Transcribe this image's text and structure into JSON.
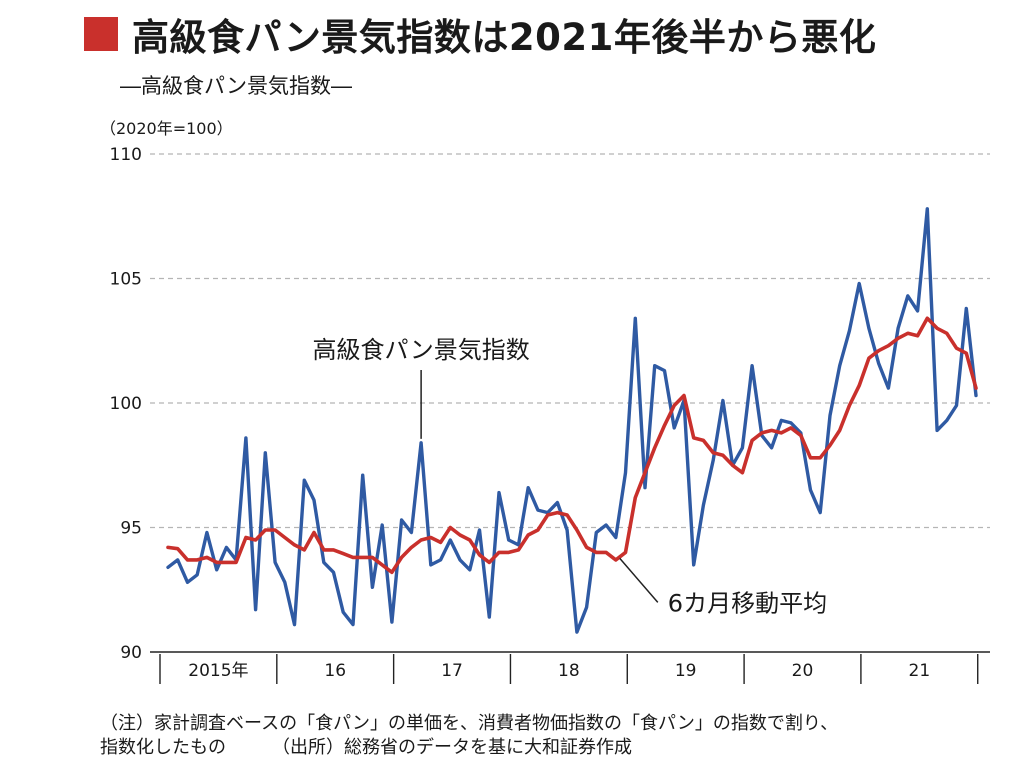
{
  "header": {
    "title": "高級食パン景気指数は2021年後半から悪化",
    "accent_color": "#c9302c"
  },
  "footer": {
    "note": "（注）家計調査ベースの「食パン」の単価を、消費者物価指数の「食パン」の指数で割り、",
    "note2": "指数化したもの",
    "source": "（出所）総務省のデータを基に大和証券作成"
  },
  "chart_data": {
    "type": "line",
    "subtitle": "―高級食パン景気指数―",
    "unit_label": "（2020年=100）",
    "ylim": [
      90,
      110
    ],
    "yticks": [
      90,
      95,
      100,
      105,
      110
    ],
    "x_range": [
      2015,
      2021.9167
    ],
    "categories": [
      "2015年",
      "16",
      "17",
      "18",
      "19",
      "20",
      "21"
    ],
    "grid": true,
    "series": [
      {
        "name": "高級食パン景気指数",
        "color": "#2f5aa3",
        "x": [
          2015.0,
          2015.0833,
          2015.1667,
          2015.25,
          2015.3333,
          2015.4167,
          2015.5,
          2015.5833,
          2015.6667,
          2015.75,
          2015.8333,
          2015.9167,
          2016.0,
          2016.0833,
          2016.1667,
          2016.25,
          2016.3333,
          2016.4167,
          2016.5,
          2016.5833,
          2016.6667,
          2016.75,
          2016.8333,
          2016.9167,
          2017.0,
          2017.0833,
          2017.1667,
          2017.25,
          2017.3333,
          2017.4167,
          2017.5,
          2017.5833,
          2017.6667,
          2017.75,
          2017.8333,
          2017.9167,
          2018.0,
          2018.0833,
          2018.1667,
          2018.25,
          2018.3333,
          2018.4167,
          2018.5,
          2018.5833,
          2018.6667,
          2018.75,
          2018.8333,
          2018.9167,
          2019.0,
          2019.0833,
          2019.1667,
          2019.25,
          2019.3333,
          2019.4167,
          2019.5,
          2019.5833,
          2019.6667,
          2019.75,
          2019.8333,
          2019.9167,
          2020.0,
          2020.0833,
          2020.1667,
          2020.25,
          2020.3333,
          2020.4167,
          2020.5,
          2020.5833,
          2020.6667,
          2020.75,
          2020.8333,
          2020.9167,
          2021.0,
          2021.0833,
          2021.1667,
          2021.25,
          2021.3333,
          2021.4167,
          2021.5,
          2021.5833,
          2021.6667,
          2021.75,
          2021.8333,
          2021.9167
        ],
        "values": [
          93.4,
          93.7,
          92.8,
          93.1,
          94.8,
          93.3,
          94.2,
          93.7,
          98.6,
          91.7,
          98.0,
          93.6,
          92.8,
          91.1,
          96.9,
          96.1,
          93.6,
          93.2,
          91.6,
          91.1,
          97.1,
          92.6,
          95.1,
          91.2,
          95.3,
          94.8,
          98.4,
          93.5,
          93.7,
          94.5,
          93.7,
          93.3,
          94.9,
          91.4,
          96.4,
          94.5,
          94.3,
          96.6,
          95.7,
          95.6,
          96.0,
          94.9,
          90.8,
          91.8,
          94.8,
          95.1,
          94.6,
          97.2,
          103.4,
          96.6,
          101.5,
          101.3,
          99.0,
          100.1,
          93.5,
          95.9,
          97.7,
          100.1,
          97.5,
          98.2,
          101.5,
          98.7,
          98.2,
          99.3,
          99.2,
          98.8,
          96.5,
          95.6,
          99.5,
          101.5,
          102.9,
          104.8,
          103.0,
          101.6,
          100.6,
          103.0,
          104.3,
          103.7,
          107.8,
          98.9,
          99.3,
          99.9,
          103.8,
          100.3
        ]
      },
      {
        "name": "6カ月移動平均",
        "color": "#c9302c",
        "x": [
          2015.0,
          2015.0833,
          2015.1667,
          2015.25,
          2015.3333,
          2015.4167,
          2015.5,
          2015.5833,
          2015.6667,
          2015.75,
          2015.8333,
          2015.9167,
          2016.0,
          2016.0833,
          2016.1667,
          2016.25,
          2016.3333,
          2016.4167,
          2016.5,
          2016.5833,
          2016.6667,
          2016.75,
          2016.8333,
          2016.9167,
          2017.0,
          2017.0833,
          2017.1667,
          2017.25,
          2017.3333,
          2017.4167,
          2017.5,
          2017.5833,
          2017.6667,
          2017.75,
          2017.8333,
          2017.9167,
          2018.0,
          2018.0833,
          2018.1667,
          2018.25,
          2018.3333,
          2018.4167,
          2018.5,
          2018.5833,
          2018.6667,
          2018.75,
          2018.8333,
          2018.9167,
          2019.0,
          2019.0833,
          2019.1667,
          2019.25,
          2019.3333,
          2019.4167,
          2019.5,
          2019.5833,
          2019.6667,
          2019.75,
          2019.8333,
          2019.9167,
          2020.0,
          2020.0833,
          2020.1667,
          2020.25,
          2020.3333,
          2020.4167,
          2020.5,
          2020.5833,
          2020.6667,
          2020.75,
          2020.8333,
          2020.9167,
          2021.0,
          2021.0833,
          2021.1667,
          2021.25,
          2021.3333,
          2021.4167,
          2021.5,
          2021.5833,
          2021.6667,
          2021.75,
          2021.8333,
          2021.9167
        ],
        "values": [
          94.2,
          94.15,
          93.7,
          93.7,
          93.8,
          93.6,
          93.6,
          93.6,
          94.6,
          94.5,
          94.9,
          94.9,
          94.6,
          94.3,
          94.1,
          94.8,
          94.1,
          94.1,
          93.95,
          93.8,
          93.8,
          93.8,
          93.5,
          93.2,
          93.8,
          94.2,
          94.5,
          94.6,
          94.4,
          95.0,
          94.7,
          94.5,
          93.9,
          93.6,
          94.0,
          94.0,
          94.1,
          94.7,
          94.9,
          95.5,
          95.6,
          95.5,
          94.9,
          94.2,
          94.0,
          94.0,
          93.7,
          94.0,
          96.2,
          97.2,
          98.2,
          99.1,
          99.9,
          100.3,
          98.6,
          98.5,
          98.0,
          97.9,
          97.5,
          97.2,
          98.5,
          98.8,
          98.9,
          98.8,
          99.0,
          98.7,
          97.8,
          97.8,
          98.3,
          98.9,
          99.9,
          100.7,
          101.8,
          102.1,
          102.3,
          102.6,
          102.8,
          102.7,
          103.4,
          103.0,
          102.8,
          102.2,
          102.0,
          100.6
        ]
      }
    ],
    "annotations": [
      {
        "text": "高級食パン景気指数",
        "series": 0,
        "x": 2017.1667,
        "y": 98.4
      },
      {
        "text": "6カ月移動平均",
        "series": 1,
        "x": 2018.8333,
        "y": 94.0
      }
    ]
  }
}
